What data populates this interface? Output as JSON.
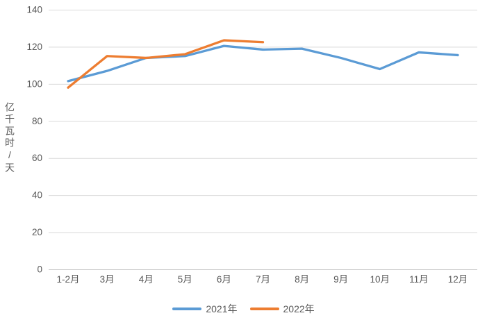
{
  "chart_data": {
    "type": "line",
    "title": "",
    "xlabel": "",
    "ylabel": "亿千瓦时/天",
    "categories": [
      "1-2月",
      "3月",
      "4月",
      "5月",
      "6月",
      "7月",
      "8月",
      "9月",
      "10月",
      "11月",
      "12月"
    ],
    "series": [
      {
        "name": "2021年",
        "color": "#5B9BD5",
        "values": [
          101.5,
          107,
          114,
          115,
          120.5,
          118.5,
          119,
          114,
          108,
          117,
          115.5
        ]
      },
      {
        "name": "2022年",
        "color": "#ED7D31",
        "values": [
          98,
          115,
          114,
          116,
          123.5,
          122.5
        ]
      }
    ],
    "ylim": [
      0,
      140
    ],
    "ytick_step": 20,
    "yticks": [
      0,
      20,
      40,
      60,
      80,
      100,
      120,
      140
    ],
    "grid": true,
    "grid_color": "#D9D9D9",
    "axis_text_color": "#595959",
    "legend_position": "bottom"
  }
}
